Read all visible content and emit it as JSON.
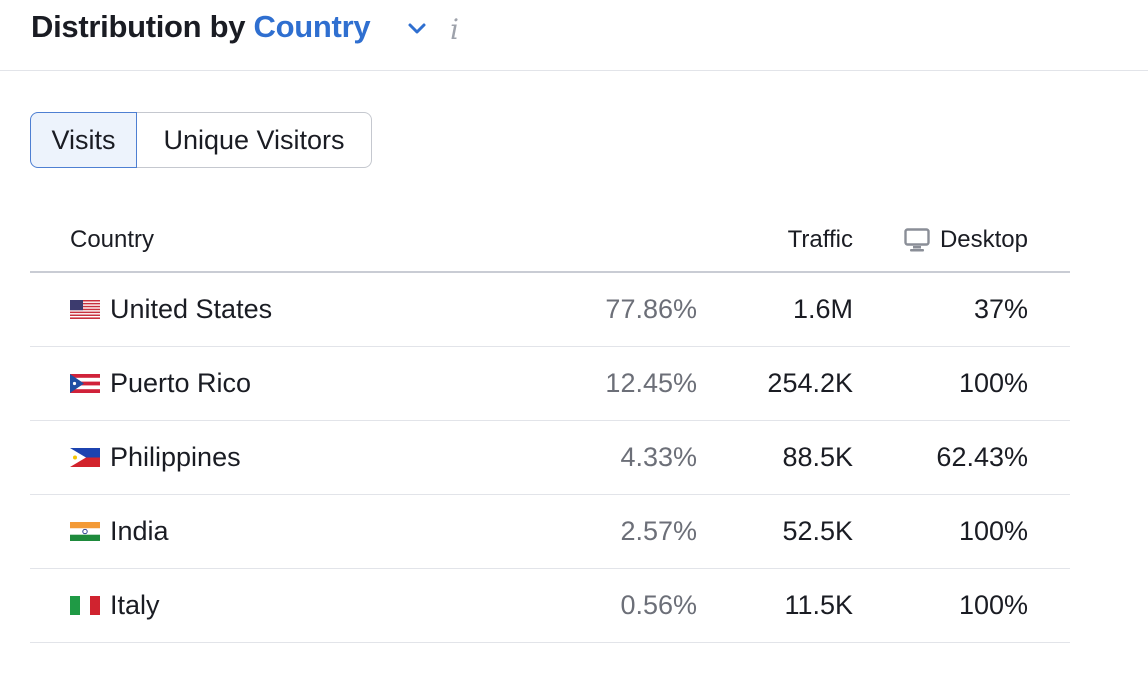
{
  "header": {
    "title_prefix": "Distribution by",
    "dimension": "Country",
    "info_glyph": "i"
  },
  "toggle": {
    "items": [
      {
        "label": "Visits",
        "active": true
      },
      {
        "label": "Unique Visitors",
        "active": false
      }
    ]
  },
  "table": {
    "columns": {
      "country": "Country",
      "traffic": "Traffic",
      "desktop": "Desktop"
    },
    "rows": [
      {
        "country": "United States",
        "flag": "us-flag-icon",
        "share": "77.86%",
        "traffic": "1.6M",
        "desktop": "37%"
      },
      {
        "country": "Puerto Rico",
        "flag": "pr-flag-icon",
        "share": "12.45%",
        "traffic": "254.2K",
        "desktop": "100%"
      },
      {
        "country": "Philippines",
        "flag": "ph-flag-icon",
        "share": "4.33%",
        "traffic": "88.5K",
        "desktop": "62.43%"
      },
      {
        "country": "India",
        "flag": "in-flag-icon",
        "share": "2.57%",
        "traffic": "52.5K",
        "desktop": "100%"
      },
      {
        "country": "Italy",
        "flag": "it-flag-icon",
        "share": "0.56%",
        "traffic": "11.5K",
        "desktop": "100%"
      }
    ]
  },
  "colors": {
    "accent": "#2f6fd0",
    "active_toggle_bg": "#edf3fc",
    "muted_text": "#6c6f78"
  }
}
